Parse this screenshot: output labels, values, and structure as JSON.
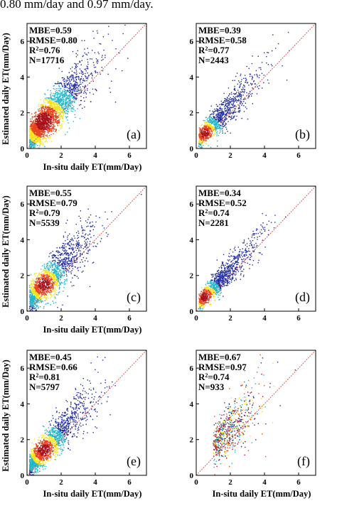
{
  "caption": "0.80 mm/day and 0.97 mm/day.",
  "colors": {
    "point": "#1f2a9e",
    "mid": "#1fb6c9",
    "dense1": "#f4e21b",
    "dense2": "#e8431c",
    "dense3": "#a8121a",
    "identity": "#d05050"
  },
  "chart_data": [
    {
      "type": "scatter",
      "panel": "(a)",
      "xlabel": "In-situ daily ET(mm/Day)",
      "ylabel": "Estimated daily ET(mm/Day)",
      "xlim": [
        0,
        7
      ],
      "ylim": [
        0,
        7
      ],
      "xticks": [
        "0",
        "2",
        "4",
        "6"
      ],
      "yticks": [
        "0",
        "2",
        "4",
        "6"
      ],
      "stats": [
        "MBE=0.59",
        "RMSE=0.80",
        "R2=0.76",
        "N=17716"
      ],
      "N": 17716,
      "density": "high",
      "trend": {
        "slope": 1.05,
        "intercept": 0.45,
        "spread": 0.75
      }
    },
    {
      "type": "scatter",
      "panel": "(b)",
      "xlabel": "",
      "ylabel": "",
      "xlim": [
        0,
        7
      ],
      "ylim": [
        0,
        7
      ],
      "xticks": [
        "0",
        "2",
        "4",
        "6"
      ],
      "yticks": [
        "0",
        "2",
        "4",
        "6"
      ],
      "stats": [
        "MBE=0.39",
        "RMSE=0.58",
        "R2=0.77",
        "N=2443"
      ],
      "N": 2443,
      "density": "sparse",
      "trend": {
        "slope": 1.0,
        "intercept": 0.35,
        "spread": 0.55
      }
    },
    {
      "type": "scatter",
      "panel": "(c)",
      "xlabel": "In-situ daily ET(mm/Day)",
      "ylabel": "Estimated daily ET(mm/Day)",
      "xlim": [
        0,
        7
      ],
      "ylim": [
        0,
        7
      ],
      "xticks": [
        "0",
        "2",
        "4",
        "6"
      ],
      "yticks": [
        "0",
        "2",
        "4",
        "6"
      ],
      "stats": [
        "MBE=0.55",
        "RMSE=0.79",
        "R2=0.79",
        "N=5539"
      ],
      "N": 5539,
      "density": "mid",
      "trend": {
        "slope": 0.98,
        "intercept": 0.5,
        "spread": 0.75
      }
    },
    {
      "type": "scatter",
      "panel": "(d)",
      "xlabel": "",
      "ylabel": "",
      "xlim": [
        0,
        7
      ],
      "ylim": [
        0,
        7
      ],
      "xticks": [
        "0",
        "2",
        "4",
        "6"
      ],
      "yticks": [
        "0",
        "2",
        "4",
        "6"
      ],
      "stats": [
        "MBE=0.34",
        "RMSE=0.52",
        "R2=0.74",
        "N=2281"
      ],
      "N": 2281,
      "density": "sparse",
      "trend": {
        "slope": 1.0,
        "intercept": 0.3,
        "spread": 0.5
      }
    },
    {
      "type": "scatter",
      "panel": "(e)",
      "xlabel": "In-situ daily ET(mm/Day)",
      "ylabel": "Estimated daily ET(mm/Day)",
      "xlim": [
        0,
        7
      ],
      "ylim": [
        0,
        7
      ],
      "xticks": [
        "0",
        "2",
        "4",
        "6"
      ],
      "yticks": [
        "0",
        "2",
        "4",
        "6"
      ],
      "stats": [
        "MBE=0.45",
        "RMSE=0.66",
        "R2=0.81",
        "N=5797"
      ],
      "N": 5797,
      "density": "mid",
      "trend": {
        "slope": 1.0,
        "intercept": 0.42,
        "spread": 0.65
      }
    },
    {
      "type": "scatter",
      "panel": "(f)",
      "xlabel": "In-situ daily ET(mm/Day)",
      "ylabel": "",
      "xlim": [
        0,
        7
      ],
      "ylim": [
        0,
        7
      ],
      "xticks": [
        "0",
        "2",
        "4",
        "6"
      ],
      "yticks": [
        "0",
        "2",
        "4",
        "6"
      ],
      "stats": [
        "MBE=0.67",
        "RMSE=0.97",
        "R2=0.74",
        "N=933"
      ],
      "N": 933,
      "density": "colored",
      "trend": {
        "slope": 1.0,
        "intercept": 0.6,
        "spread": 0.85
      }
    }
  ]
}
